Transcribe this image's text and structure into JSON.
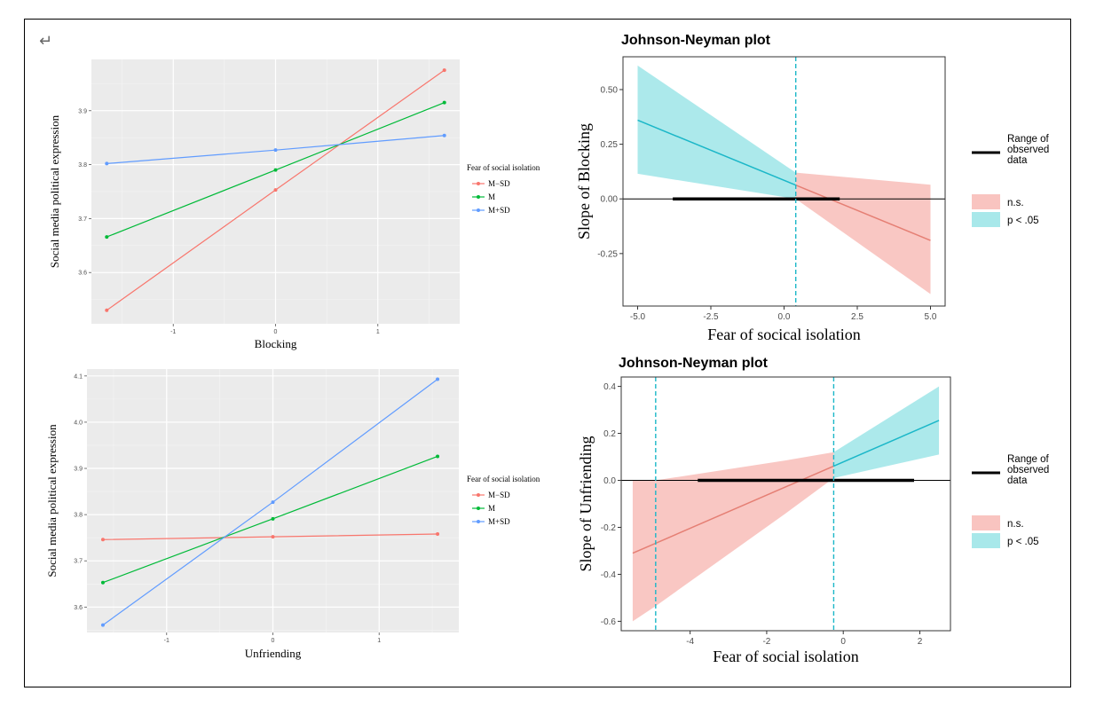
{
  "return_mark": "↵",
  "chart_data": [
    {
      "type": "line",
      "xlabel": "Blocking",
      "ylabel": "Social media political expression",
      "x": [
        -1.65,
        0,
        1.65
      ],
      "xlim": [
        -1.8,
        1.8
      ],
      "ylim": [
        3.505,
        3.995
      ],
      "xticks": [
        -1,
        0,
        1
      ],
      "yticks": [
        3.6,
        3.7,
        3.8,
        3.9
      ],
      "legend_title": "Fear of social isolation",
      "legend_position": "right",
      "series": [
        {
          "name": "M−SD",
          "color": "#F8766D",
          "values": [
            3.53,
            3.753,
            3.975
          ]
        },
        {
          "name": "M",
          "color": "#00BA38",
          "values": [
            3.666,
            3.79,
            3.915
          ]
        },
        {
          "name": "M+SD",
          "color": "#619CFF",
          "values": [
            3.802,
            3.827,
            3.854
          ]
        }
      ]
    },
    {
      "type": "line",
      "xlabel": "Unfriending",
      "ylabel": "Social media political expression",
      "x": [
        -1.6,
        0,
        1.55
      ],
      "xlim": [
        -1.75,
        1.75
      ],
      "ylim": [
        3.545,
        4.115
      ],
      "xticks": [
        -1,
        0,
        1
      ],
      "yticks": [
        3.6,
        3.7,
        3.8,
        3.9,
        4.0,
        4.1
      ],
      "legend_title": "Fear of social isolation",
      "legend_position": "right",
      "series": [
        {
          "name": "M−SD",
          "color": "#F8766D",
          "values": [
            3.746,
            3.752,
            3.758
          ]
        },
        {
          "name": "M",
          "color": "#00BA38",
          "values": [
            3.653,
            3.791,
            3.926
          ]
        },
        {
          "name": "M+SD",
          "color": "#619CFF",
          "values": [
            3.561,
            3.827,
            4.093
          ]
        }
      ]
    },
    {
      "type": "area",
      "title": "Johnson-Neyman plot",
      "xlabel": "Fear of socical isolation",
      "ylabel": "Slope of Blocking",
      "xlim": [
        -5.5,
        5.5
      ],
      "ylim": [
        -0.49,
        0.65
      ],
      "xticks": [
        -5.0,
        -2.5,
        0.0,
        2.5,
        5.0
      ],
      "yticks": [
        -0.25,
        0.0,
        0.25,
        0.5
      ],
      "line": {
        "x": [
          -5.0,
          5.0
        ],
        "y": [
          0.36,
          -0.19
        ]
      },
      "ci_upper": {
        "x": [
          -5.0,
          0.4,
          5.0
        ],
        "y": [
          0.61,
          0.12,
          0.065
        ]
      },
      "ci_lower": {
        "x": [
          -5.0,
          0.4,
          5.0
        ],
        "y": [
          0.115,
          0.0,
          -0.435
        ]
      },
      "jn_boundary": [
        0.4
      ],
      "observed_range": [
        -3.8,
        1.9
      ],
      "legend": {
        "range_label": "Range of observed data",
        "ns_label": "n.s.",
        "sig_label": "p < .05"
      },
      "colors": {
        "sig_fill": "#A8E8EA",
        "sig_line": "#1BB7C8",
        "ns_fill": "#F9C4C0",
        "ns_line": "#E57F74"
      }
    },
    {
      "type": "area",
      "title": "Johnson-Neyman plot",
      "xlabel": "Fear of social isolation",
      "ylabel": "Slope of Unfriending",
      "xlim": [
        -5.8,
        2.8
      ],
      "ylim": [
        -0.64,
        0.44
      ],
      "xticks": [
        -4,
        -2,
        0,
        2
      ],
      "yticks": [
        -0.6,
        -0.4,
        -0.2,
        0.0,
        0.2,
        0.4
      ],
      "line": {
        "x": [
          -5.5,
          2.5
        ],
        "y": [
          -0.31,
          0.255
        ]
      },
      "ci_upper": {
        "x": [
          -5.5,
          -4.9,
          -1.5,
          -0.25,
          2.5
        ],
        "y": [
          0.0,
          0.0,
          0.085,
          0.12,
          0.4
        ]
      },
      "ci_lower": {
        "x": [
          -5.5,
          -4.9,
          -1.5,
          -0.25,
          2.5
        ],
        "y": [
          -0.6,
          -0.535,
          -0.14,
          0.01,
          0.11
        ]
      },
      "jn_boundary": [
        -4.9,
        -0.25
      ],
      "observed_range": [
        -3.8,
        1.85
      ],
      "legend": {
        "range_label": "Range of observed data",
        "ns_label": "n.s.",
        "sig_label": "p < .05"
      },
      "colors": {
        "sig_fill": "#A8E8EA",
        "sig_line": "#1BB7C8",
        "ns_fill": "#F9C4C0",
        "ns_line": "#E57F74"
      }
    }
  ]
}
